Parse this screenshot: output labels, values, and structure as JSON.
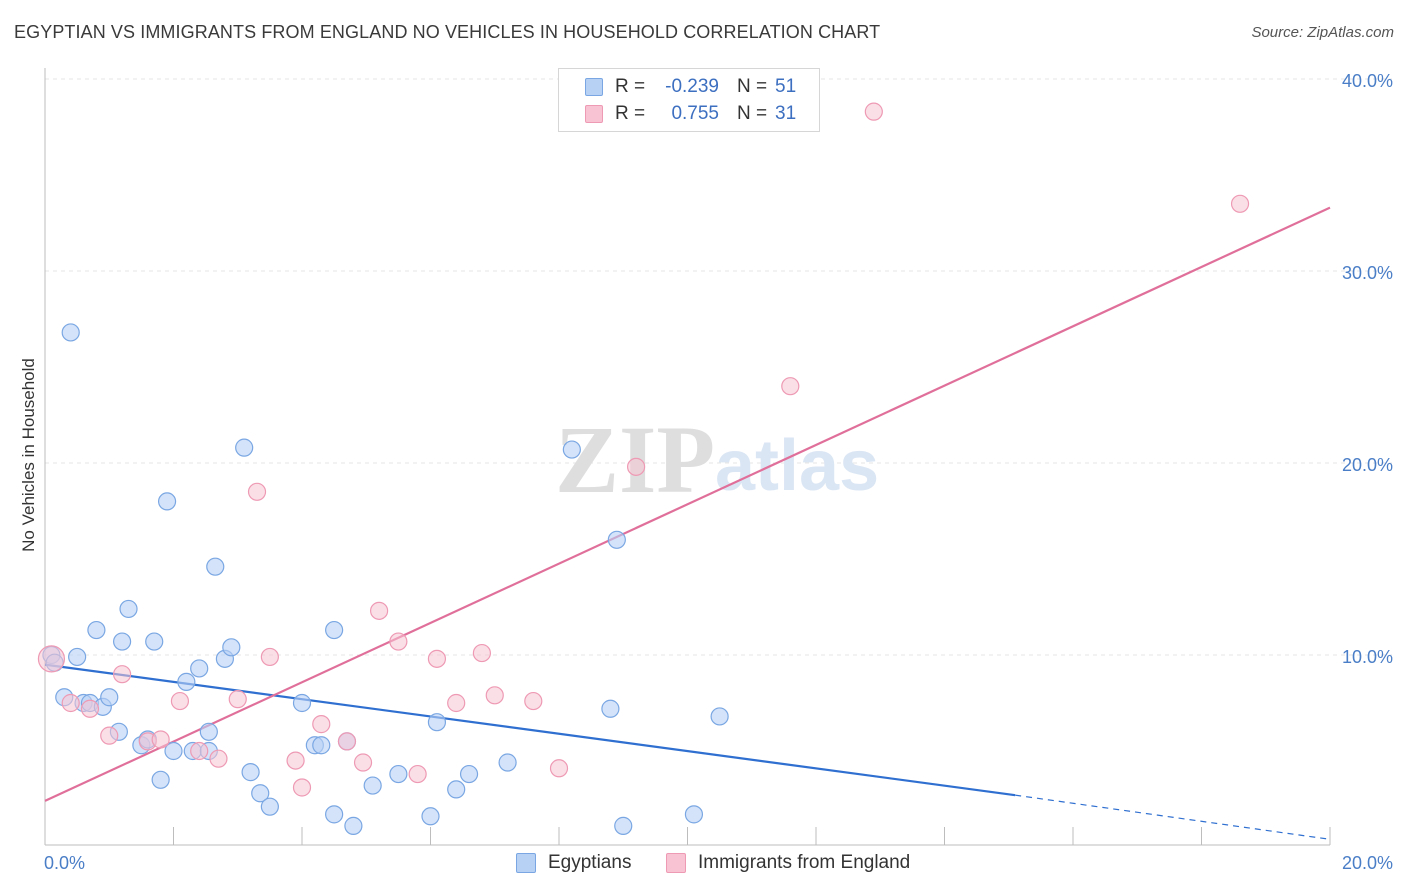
{
  "title": "EGYPTIAN VS IMMIGRANTS FROM ENGLAND NO VEHICLES IN HOUSEHOLD CORRELATION CHART",
  "source": "Source: ZipAtlas.com",
  "watermark": {
    "zip": "ZIP",
    "atlas": "atlas"
  },
  "legend": {
    "rows": [
      {
        "r_label": "R =",
        "r_value": "-0.239",
        "n_label": "N =",
        "n_value": "51"
      },
      {
        "r_label": "R =",
        "r_value": "0.755",
        "n_label": "N =",
        "n_value": "31"
      }
    ]
  },
  "colors": {
    "blue_fill": "#b7d1f5",
    "blue_stroke": "#7aa7e3",
    "blue_line": "#2f6fd0",
    "pink_fill": "#f8c4d3",
    "pink_stroke": "#ee9ab4",
    "pink_line": "#e0709a",
    "tick_text": "#4a7ec7",
    "grid": "#e4e4e4"
  },
  "chart_data": {
    "type": "scatter",
    "title": "EGYPTIAN VS IMMIGRANTS FROM ENGLAND NO VEHICLES IN HOUSEHOLD CORRELATION CHART",
    "xlabel": "",
    "ylabel": "No Vehicles in Household",
    "xlim": [
      0,
      20
    ],
    "ylim": [
      0,
      42
    ],
    "x_tick_labels": [
      "0.0%",
      "20.0%"
    ],
    "y_ticks": [
      10,
      20,
      30,
      40
    ],
    "y_tick_labels": [
      "10.0%",
      "20.0%",
      "30.0%",
      "40.0%"
    ],
    "series": [
      {
        "name": "Egyptians",
        "color": "#7aa7e3",
        "points": [
          [
            0.1,
            10.0
          ],
          [
            0.4,
            26.8
          ],
          [
            0.3,
            7.8
          ],
          [
            0.5,
            9.9
          ],
          [
            0.6,
            7.5
          ],
          [
            0.7,
            7.5
          ],
          [
            0.8,
            11.3
          ],
          [
            0.9,
            7.3
          ],
          [
            1.0,
            7.8
          ],
          [
            1.2,
            10.7
          ],
          [
            1.3,
            12.4
          ],
          [
            1.15,
            6.0
          ],
          [
            1.5,
            5.3
          ],
          [
            1.6,
            5.6
          ],
          [
            1.7,
            10.7
          ],
          [
            1.8,
            3.5
          ],
          [
            1.9,
            18.0
          ],
          [
            2.0,
            5.0
          ],
          [
            2.2,
            8.6
          ],
          [
            2.3,
            5.0
          ],
          [
            2.4,
            9.3
          ],
          [
            2.55,
            6.0
          ],
          [
            2.55,
            5.0
          ],
          [
            2.65,
            14.6
          ],
          [
            2.8,
            9.8
          ],
          [
            2.9,
            10.4
          ],
          [
            3.1,
            20.8
          ],
          [
            3.2,
            3.9
          ],
          [
            3.35,
            2.8
          ],
          [
            3.5,
            2.1
          ],
          [
            4.0,
            7.5
          ],
          [
            4.2,
            5.3
          ],
          [
            4.3,
            5.3
          ],
          [
            4.5,
            1.7
          ],
          [
            4.5,
            11.3
          ],
          [
            4.7,
            5.5
          ],
          [
            4.8,
            1.1
          ],
          [
            5.1,
            3.2
          ],
          [
            5.5,
            3.8
          ],
          [
            6.0,
            1.6
          ],
          [
            6.1,
            6.5
          ],
          [
            6.4,
            3.0
          ],
          [
            6.6,
            3.8
          ],
          [
            7.2,
            4.4
          ],
          [
            8.2,
            20.7
          ],
          [
            8.8,
            7.2
          ],
          [
            8.9,
            16.0
          ],
          [
            9.0,
            1.1
          ],
          [
            10.1,
            1.7
          ],
          [
            10.5,
            6.8
          ],
          [
            0.15,
            9.6
          ]
        ]
      },
      {
        "name": "Immigrants from England",
        "color": "#ee9ab4",
        "points": [
          [
            0.1,
            9.8
          ],
          [
            0.4,
            7.5
          ],
          [
            0.7,
            7.2
          ],
          [
            1.0,
            5.8
          ],
          [
            1.2,
            9.0
          ],
          [
            1.6,
            5.5
          ],
          [
            1.8,
            5.6
          ],
          [
            2.1,
            7.6
          ],
          [
            2.4,
            5.0
          ],
          [
            2.7,
            4.6
          ],
          [
            3.0,
            7.7
          ],
          [
            3.3,
            18.5
          ],
          [
            3.5,
            9.9
          ],
          [
            3.9,
            4.5
          ],
          [
            4.0,
            3.1
          ],
          [
            4.3,
            6.4
          ],
          [
            4.7,
            5.5
          ],
          [
            4.95,
            4.4
          ],
          [
            5.2,
            12.3
          ],
          [
            5.5,
            10.7
          ],
          [
            5.8,
            3.8
          ],
          [
            6.1,
            9.8
          ],
          [
            6.4,
            7.5
          ],
          [
            6.8,
            10.1
          ],
          [
            7.0,
            7.9
          ],
          [
            7.6,
            7.6
          ],
          [
            8.0,
            4.1
          ],
          [
            9.2,
            19.8
          ],
          [
            11.6,
            24.0
          ],
          [
            12.9,
            38.3
          ],
          [
            18.6,
            33.5
          ]
        ]
      }
    ],
    "trendlines": [
      {
        "series": "Egyptians",
        "x": [
          0,
          15.1
        ],
        "y": [
          9.5,
          2.7
        ],
        "dashed_extension": [
          15.1,
          20
        ],
        "dashed_y": [
          2.7,
          0.4
        ]
      },
      {
        "series": "Immigrants from England",
        "x": [
          0,
          20
        ],
        "y": [
          2.4,
          33.3
        ]
      }
    ]
  },
  "bottom_legend": [
    "Egyptians",
    "Immigrants from England"
  ]
}
